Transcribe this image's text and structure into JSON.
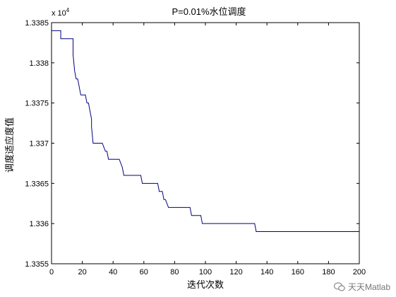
{
  "chart_data": {
    "type": "line",
    "title": "P=0.01%水位调度",
    "xlabel": "迭代次数",
    "ylabel": "调度适应度值",
    "exponent_label": "x 10",
    "exponent_power": "4",
    "xlim": [
      0,
      200
    ],
    "ylim": [
      1.3355,
      1.3385
    ],
    "xticks": [
      0,
      20,
      40,
      60,
      80,
      100,
      120,
      140,
      160,
      180,
      200
    ],
    "yticks": [
      1.3355,
      1.336,
      1.3365,
      1.337,
      1.3375,
      1.338,
      1.3385
    ],
    "ytick_labels": [
      "1.3355",
      "1.336",
      "1.3365",
      "1.337",
      "1.3375",
      "1.338",
      "1.3385"
    ],
    "grid": false,
    "line_color": "#00007f",
    "series": [
      {
        "x": [
          0,
          6,
          6,
          14,
          14,
          15,
          16,
          17,
          18,
          19,
          20,
          21,
          22,
          23,
          24,
          25,
          26,
          26,
          27,
          28,
          29,
          33,
          35,
          36,
          37,
          38,
          44,
          46,
          47,
          58,
          59,
          69,
          70,
          72,
          73,
          74,
          76,
          78,
          90,
          91,
          97,
          98,
          132,
          133,
          200
        ],
        "y": [
          1.3384,
          1.3384,
          1.3383,
          1.3383,
          1.3381,
          1.3379,
          1.3378,
          1.3378,
          1.3377,
          1.3376,
          1.3376,
          1.3376,
          1.3376,
          1.3375,
          1.3375,
          1.3374,
          1.3373,
          1.3372,
          1.337,
          1.337,
          1.337,
          1.337,
          1.3369,
          1.3369,
          1.3368,
          1.3368,
          1.3368,
          1.3367,
          1.3366,
          1.3366,
          1.3365,
          1.3365,
          1.3364,
          1.3364,
          1.3363,
          1.3363,
          1.3362,
          1.3362,
          1.3362,
          1.3361,
          1.3361,
          1.336,
          1.336,
          1.3359,
          1.3359
        ]
      }
    ]
  },
  "watermark": {
    "text": "天天Matlab",
    "icon": "wechat-icon"
  }
}
